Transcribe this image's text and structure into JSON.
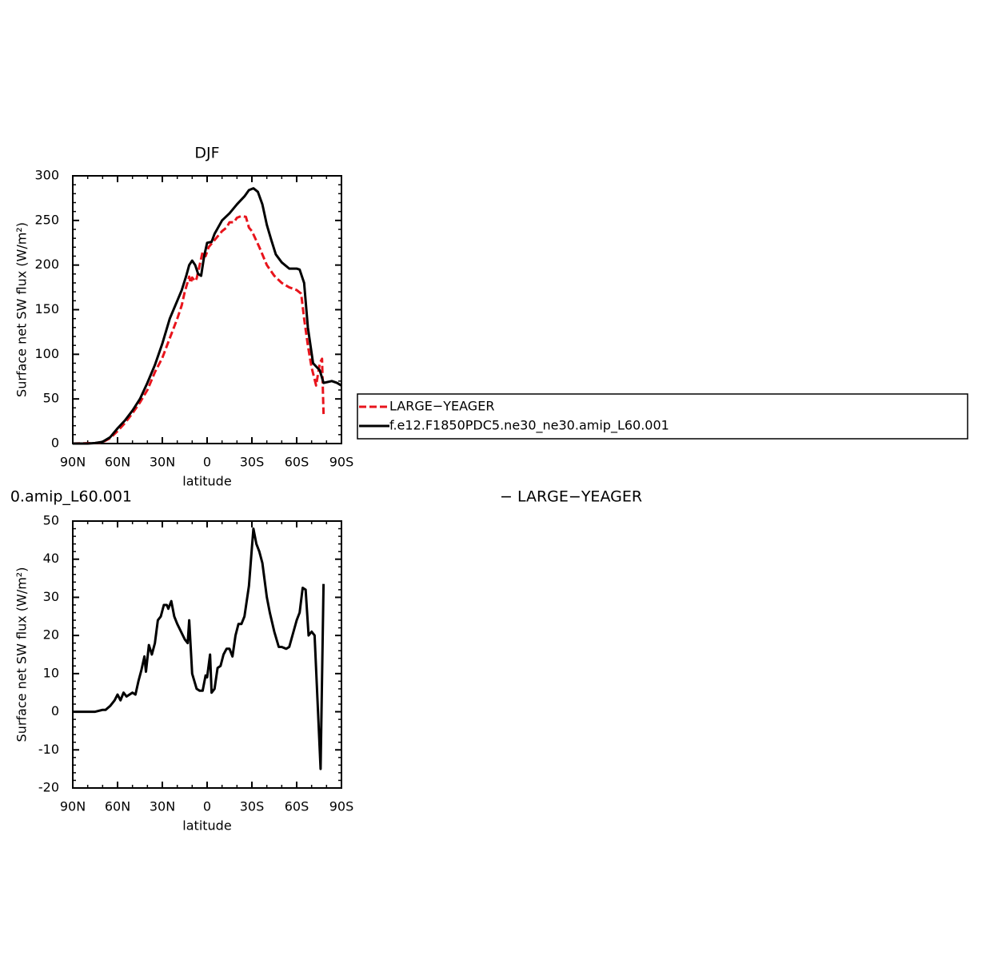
{
  "chart_data": [
    {
      "type": "line",
      "title": "DJF",
      "xlabel": "latitude",
      "ylabel": "Surface net SW flux (W/m²)",
      "xlim": [
        90,
        -90
      ],
      "xticks": [
        {
          "value": 90,
          "label": "90N"
        },
        {
          "value": 60,
          "label": "60N"
        },
        {
          "value": 30,
          "label": "30N"
        },
        0,
        {
          "value": -30,
          "label": "30S"
        },
        {
          "value": -60,
          "label": "60S"
        },
        {
          "value": -90,
          "label": "90S"
        }
      ],
      "ylim": [
        0,
        300
      ],
      "yticks": [
        0,
        50,
        100,
        150,
        200,
        250,
        300
      ],
      "legend": "outside right",
      "series": [
        {
          "name": "LARGE−YEAGER",
          "color": "#e8141c",
          "dashed": true,
          "x": [
            90,
            75,
            70,
            65,
            60,
            55,
            50,
            45,
            40,
            35,
            30,
            25,
            20,
            17,
            15,
            12,
            11,
            10,
            8,
            7,
            5,
            3,
            1,
            -1,
            -5,
            -10,
            -13,
            -15,
            -18,
            -20,
            -23,
            -26,
            -28,
            -30,
            -35,
            -40,
            -45,
            -50,
            -55,
            -60,
            -63,
            -65,
            -67.5,
            -70,
            -72,
            -73,
            -75.5,
            -77,
            -78
          ],
          "values": [
            0,
            0.5,
            1.5,
            6,
            14,
            23,
            34,
            46,
            60,
            80,
            96,
            118,
            140,
            155,
            170,
            187,
            180,
            186,
            182,
            185,
            200,
            215,
            210,
            220,
            228,
            238,
            242,
            248,
            248,
            253,
            255,
            254,
            242,
            238,
            220,
            200,
            188,
            180,
            175,
            172,
            168,
            140,
            110,
            85,
            72,
            65,
            90,
            95,
            33
          ]
        },
        {
          "name": "f.e12.F1850PDC5.ne30_ne30.amip_L60.001",
          "color": "#000000",
          "dashed": false,
          "x": [
            90,
            80,
            75,
            70,
            65,
            60,
            55,
            50,
            45,
            40,
            35,
            30,
            25,
            20,
            17,
            14,
            12,
            10,
            8,
            6,
            4,
            2,
            0,
            -3,
            -5,
            -10,
            -15,
            -20,
            -25,
            -28,
            -31,
            -34,
            -37,
            -40,
            -43,
            -46,
            -50,
            -55,
            -60,
            -62,
            -65,
            -67.5,
            -71,
            -75.5,
            -78,
            -83.5,
            -87,
            -90
          ],
          "values": [
            0,
            0,
            0.5,
            2,
            7,
            17,
            26,
            37,
            50,
            68,
            88,
            112,
            140,
            160,
            172,
            188,
            200,
            205,
            200,
            190,
            188,
            210,
            225,
            226,
            235,
            250,
            258,
            268,
            277,
            284,
            286,
            282,
            268,
            245,
            228,
            212,
            203,
            196,
            196,
            195,
            180,
            130,
            90,
            82,
            68,
            70,
            68,
            65
          ]
        }
      ]
    },
    {
      "type": "line",
      "title": "0.amip_L60.001",
      "subtitle": "− LARGE−YEAGER",
      "xlabel": "latitude",
      "ylabel": "Surface net SW flux (W/m²)",
      "xlim": [
        90,
        -90
      ],
      "xticks": [
        {
          "value": 90,
          "label": "90N"
        },
        {
          "value": 60,
          "label": "60N"
        },
        {
          "value": 30,
          "label": "30N"
        },
        0,
        {
          "value": -30,
          "label": "30S"
        },
        {
          "value": -60,
          "label": "60S"
        },
        {
          "value": -90,
          "label": "90S"
        }
      ],
      "ylim": [
        -20,
        50
      ],
      "yticks": [
        -20,
        -10,
        0,
        10,
        20,
        30,
        40,
        50
      ],
      "series": [
        {
          "color": "#000000",
          "x": [
            90,
            75,
            70,
            68,
            65,
            62,
            60,
            58,
            56,
            54,
            50,
            48,
            46,
            44,
            42,
            41,
            39,
            37,
            35,
            33,
            31,
            29,
            27,
            26,
            24,
            22,
            20,
            15,
            13,
            12,
            10,
            7,
            5,
            3,
            1,
            0,
            -2,
            -3,
            -5,
            -7,
            -9,
            -11,
            -13,
            -15,
            -17,
            -19,
            -21,
            -23,
            -25,
            -28,
            -30,
            -31,
            -33,
            -35,
            -37,
            -40,
            -42,
            -45,
            -48,
            -50,
            -53,
            -55,
            -60,
            -62,
            -64,
            -66,
            -68,
            -70,
            -72,
            -76,
            -78
          ],
          "values": [
            0,
            0,
            0.5,
            0.5,
            1.5,
            3,
            4.5,
            3,
            5,
            4,
            5,
            4.5,
            8,
            11,
            14.5,
            10.5,
            17.5,
            15,
            18,
            24,
            25,
            28,
            28,
            27,
            29,
            25,
            23,
            19,
            18,
            24,
            10,
            6,
            5.5,
            5.5,
            9.5,
            9,
            15,
            5,
            6,
            11.5,
            12,
            15,
            16.5,
            16.5,
            14.5,
            20,
            23,
            23,
            25,
            33,
            43,
            48,
            44,
            42,
            39,
            30,
            26,
            21,
            17,
            17,
            16.5,
            17,
            24,
            26,
            32.5,
            32,
            20,
            21,
            20,
            -15,
            33.5
          ]
        }
      ]
    }
  ]
}
